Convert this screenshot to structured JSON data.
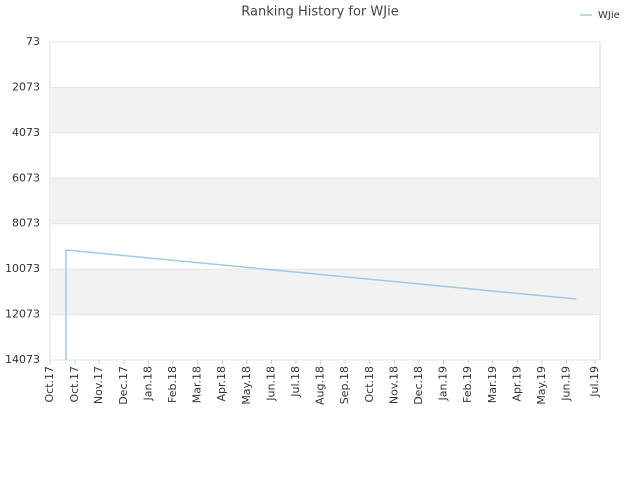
{
  "chart_data": {
    "type": "line",
    "title": "Ranking History for WJie",
    "x": [
      0.65,
      0.65,
      21.4
    ],
    "series": [
      {
        "name": "WJie",
        "color": "#9ecae9",
        "values": [
          14073,
          9230,
          11390
        ]
      }
    ],
    "xlim": [
      0,
      22.36
    ],
    "xticks": [
      {
        "value": 0,
        "label": "Oct.17"
      },
      {
        "value": 1.02,
        "label": "Oct.17"
      },
      {
        "value": 2,
        "label": "Nov.17"
      },
      {
        "value": 3,
        "label": "Dec.17"
      },
      {
        "value": 4,
        "label": "Jan.18"
      },
      {
        "value": 5,
        "label": "Feb.18"
      },
      {
        "value": 6,
        "label": "Mar.18"
      },
      {
        "value": 7,
        "label": "Apr.18"
      },
      {
        "value": 8,
        "label": "May.18"
      },
      {
        "value": 9,
        "label": "Jun.18"
      },
      {
        "value": 10,
        "label": "Jul.18"
      },
      {
        "value": 11,
        "label": "Aug.18"
      },
      {
        "value": 12,
        "label": "Sep.18"
      },
      {
        "value": 13,
        "label": "Oct.18"
      },
      {
        "value": 14,
        "label": "Nov.18"
      },
      {
        "value": 15,
        "label": "Dec.18"
      },
      {
        "value": 16,
        "label": "Jan.19"
      },
      {
        "value": 17,
        "label": "Feb.19"
      },
      {
        "value": 18,
        "label": "Mar.19"
      },
      {
        "value": 19,
        "label": "Apr.19"
      },
      {
        "value": 20,
        "label": "May.19"
      },
      {
        "value": 21,
        "label": "Jun.19"
      },
      {
        "value": 22.15,
        "label": "Jul.19"
      }
    ],
    "ylim": [
      73,
      14073
    ],
    "y_inverted": true,
    "yticks": [
      73,
      2073,
      4073,
      6073,
      8073,
      10073,
      12073,
      14073
    ],
    "grid": true,
    "legend": "top-right"
  }
}
